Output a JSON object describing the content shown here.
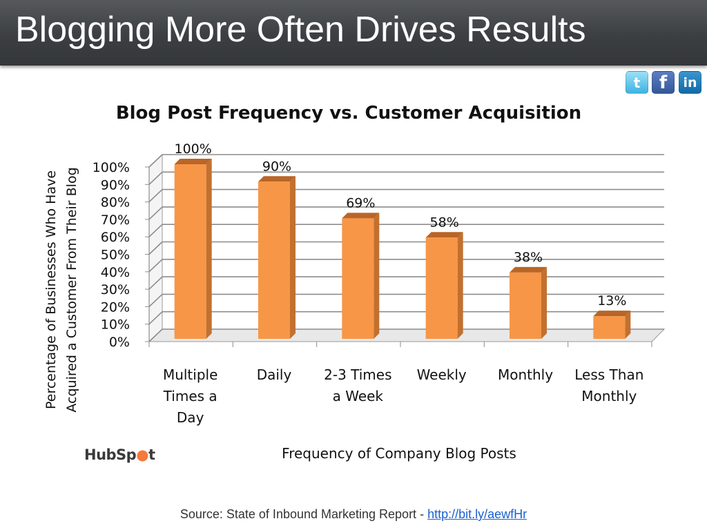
{
  "slide": {
    "title": "Blogging More Often Drives Results"
  },
  "social": [
    {
      "icon": "twitter-icon",
      "glyph": "t",
      "color": "#3eb3e2"
    },
    {
      "icon": "facebook-icon",
      "glyph": "f",
      "color": "#34579b"
    },
    {
      "icon": "linkedin-icon",
      "glyph": "in",
      "color": "#116aa7"
    }
  ],
  "chart_data": {
    "type": "bar",
    "title": "Blog Post Frequency vs. Customer Acquisition",
    "xlabel": "Frequency of Company Blog Posts",
    "ylabel_lines": [
      "Percentage of Businesses Who Have",
      "Acquired a Customer From Their Blog"
    ],
    "categories": [
      [
        "Multiple",
        "Times a",
        "Day"
      ],
      [
        "Daily"
      ],
      [
        "2-3 Times",
        "a Week"
      ],
      [
        "Weekly"
      ],
      [
        "Monthly"
      ],
      [
        "Less Than",
        "Monthly"
      ]
    ],
    "values": [
      100,
      90,
      69,
      58,
      38,
      13
    ],
    "data_labels": [
      "100%",
      "90%",
      "69%",
      "58%",
      "38%",
      "13%"
    ],
    "y_ticks": [
      "0%",
      "10%",
      "20%",
      "30%",
      "40%",
      "50%",
      "60%",
      "70%",
      "80%",
      "90%",
      "100%"
    ],
    "ylim": [
      0,
      100
    ],
    "grid": true,
    "bar_color": "#f79646",
    "bar_side_color": "#c2702f",
    "bar_top_color": "#b96528"
  },
  "logo": {
    "part1": "HubSp",
    "part2": "t"
  },
  "source": {
    "prefix": "Source: State of Inbound Marketing Report - ",
    "link_text": "http://bit.ly/aewfHr"
  }
}
